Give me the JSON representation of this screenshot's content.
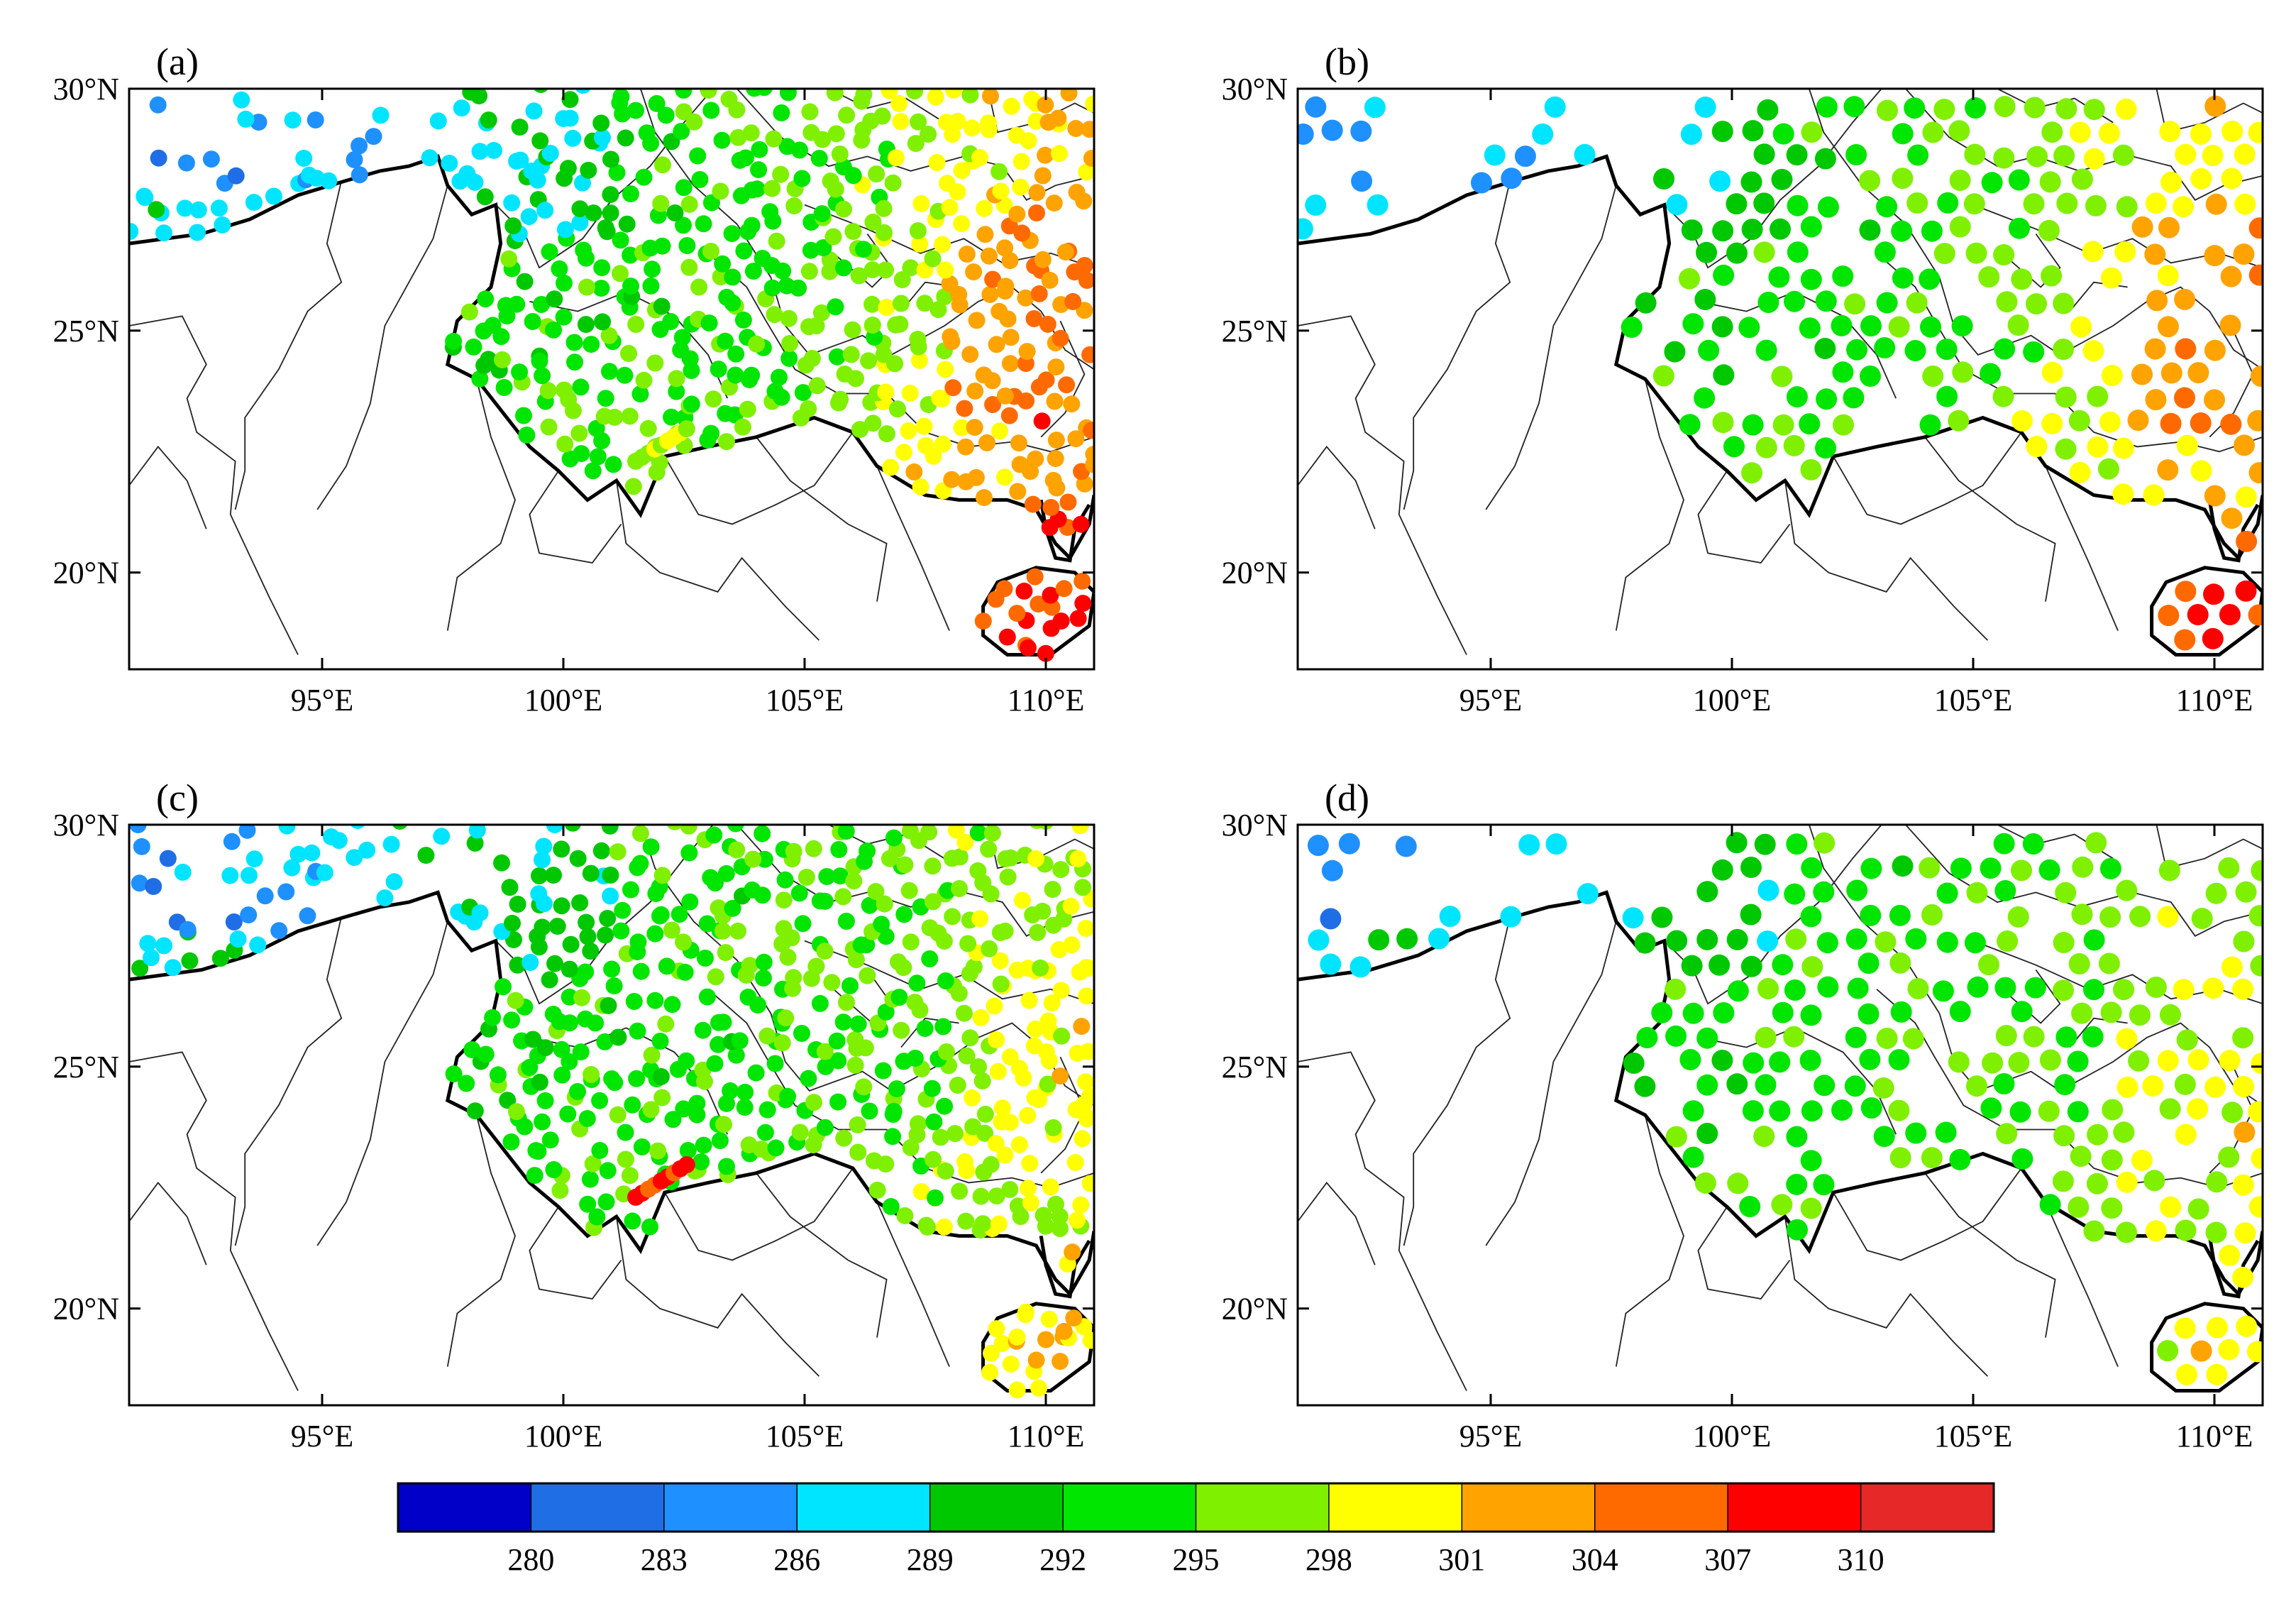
{
  "panels": [
    {
      "id": "a",
      "label": "(a)",
      "seed": 11,
      "res": 1.0,
      "heat": 1.15,
      "tl": [
        [
          22.3,
          101.5,
          23.0,
          102.6
        ]
      ]
    },
    {
      "id": "b",
      "label": "(b)",
      "seed": 23,
      "res": 2.0,
      "heat": 1.05,
      "tl": []
    },
    {
      "id": "c",
      "label": "(c)",
      "seed": 37,
      "res": 1.0,
      "heat": 0.55,
      "tl": [
        [
          22.3,
          101.5,
          23.0,
          102.6
        ]
      ]
    },
    {
      "id": "d",
      "label": "(d)",
      "seed": 51,
      "res": 2.0,
      "heat": 0.5,
      "tl": []
    }
  ],
  "axes": {
    "x_ticks": [
      95,
      100,
      105,
      110
    ],
    "x_tick_labels": [
      "95°E",
      "100°E",
      "105°E",
      "110°E"
    ],
    "y_ticks": [
      20,
      25,
      30
    ],
    "y_tick_labels": [
      "20°N",
      "25°N",
      "30°N"
    ],
    "lon_range": [
      91,
      111
    ],
    "lat_range": [
      18,
      30
    ]
  },
  "colorbar": {
    "colors": [
      "#0000c8",
      "#1f6ee6",
      "#1e90ff",
      "#00e5ff",
      "#00c800",
      "#00e600",
      "#7ff000",
      "#ffff00",
      "#ffa300",
      "#ff6a00",
      "#ff0000",
      "#e62828"
    ],
    "tick_labels": [
      "280",
      "283",
      "286",
      "289",
      "292",
      "295",
      "298",
      "301",
      "304",
      "307",
      "310"
    ],
    "min": 277,
    "max": 313,
    "step": 3
  }
}
